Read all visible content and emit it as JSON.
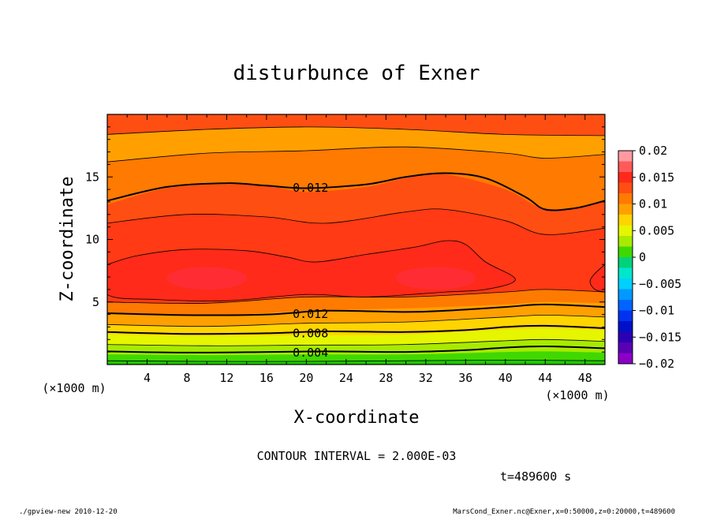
{
  "chart_data": {
    "type": "heatmap",
    "title": "disturbunce of Exner",
    "xlabel": "X-coordinate",
    "ylabel": "Z-coordinate",
    "x_unit": "(×1000 m)",
    "z_unit": "(×1000 m)",
    "xlim": [
      0,
      50
    ],
    "ylim": [
      0,
      20
    ],
    "x_ticks": [
      "4",
      "8",
      "12",
      "16",
      "20",
      "24",
      "28",
      "32",
      "36",
      "40",
      "44",
      "48"
    ],
    "y_ticks": [
      "5",
      "10",
      "15"
    ],
    "contour_interval_text": "CONTOUR INTERVAL = 2.000E-03",
    "time_text": "t=489600 s",
    "colorbar": {
      "labels": [
        "0.02",
        "0.015",
        "0.01",
        "0.005",
        "0",
        "−0.005",
        "−0.01",
        "−0.015",
        "−0.02"
      ],
      "range": [
        -0.02,
        0.02
      ],
      "bands": [
        {
          "lo": 0.018,
          "hi": 0.02,
          "color": "#ff9aa0"
        },
        {
          "lo": 0.016,
          "hi": 0.018,
          "color": "#ff5a5a"
        },
        {
          "lo": 0.014,
          "hi": 0.016,
          "color": "#ff2a1a"
        },
        {
          "lo": 0.012,
          "hi": 0.014,
          "color": "#ff4e12"
        },
        {
          "lo": 0.01,
          "hi": 0.012,
          "color": "#ff7a00"
        },
        {
          "lo": 0.008,
          "hi": 0.01,
          "color": "#ffa000"
        },
        {
          "lo": 0.006,
          "hi": 0.008,
          "color": "#ffd400"
        },
        {
          "lo": 0.004,
          "hi": 0.006,
          "color": "#e6f500"
        },
        {
          "lo": 0.002,
          "hi": 0.004,
          "color": "#a8ea00"
        },
        {
          "lo": 0.0,
          "hi": 0.002,
          "color": "#40d800"
        },
        {
          "lo": -0.002,
          "hi": 0.0,
          "color": "#00d27a"
        },
        {
          "lo": -0.004,
          "hi": -0.002,
          "color": "#00e6cc"
        },
        {
          "lo": -0.006,
          "hi": -0.004,
          "color": "#00d0ff"
        },
        {
          "lo": -0.008,
          "hi": -0.006,
          "color": "#0099ff"
        },
        {
          "lo": -0.01,
          "hi": -0.008,
          "color": "#0064ff"
        },
        {
          "lo": -0.012,
          "hi": -0.01,
          "color": "#0032f0"
        },
        {
          "lo": -0.014,
          "hi": -0.012,
          "color": "#0010c8"
        },
        {
          "lo": -0.016,
          "hi": -0.014,
          "color": "#2a00b4"
        },
        {
          "lo": -0.018,
          "hi": -0.016,
          "color": "#5a00b4"
        },
        {
          "lo": -0.02,
          "hi": -0.018,
          "color": "#8a00c8"
        }
      ]
    },
    "field_bands": [
      {
        "value": 0.001,
        "color": "#40d800",
        "boundary": [
          [
            0,
            0.3
          ],
          [
            10,
            0.25
          ],
          [
            20,
            0.25
          ],
          [
            30,
            0.3
          ],
          [
            40,
            0.35
          ],
          [
            50,
            0.3
          ]
        ]
      },
      {
        "value": 0.003,
        "color": "#a8ea00",
        "boundary": [
          [
            0,
            0.8
          ],
          [
            10,
            0.75
          ],
          [
            20,
            0.8
          ],
          [
            30,
            0.8
          ],
          [
            40,
            1.0
          ],
          [
            44,
            1.05
          ],
          [
            50,
            0.95
          ]
        ]
      },
      {
        "value": 0.005,
        "color": "#e6f500",
        "boundary": [
          [
            0,
            1.6
          ],
          [
            10,
            1.5
          ],
          [
            20,
            1.55
          ],
          [
            30,
            1.6
          ],
          [
            40,
            1.9
          ],
          [
            44,
            2.0
          ],
          [
            50,
            1.85
          ]
        ]
      },
      {
        "value": 0.007,
        "color": "#ffd400",
        "boundary": [
          [
            0,
            2.4
          ],
          [
            10,
            2.3
          ],
          [
            20,
            2.35
          ],
          [
            30,
            2.4
          ],
          [
            40,
            2.8
          ],
          [
            44,
            2.9
          ],
          [
            50,
            2.75
          ]
        ]
      },
      {
        "value": 0.009,
        "color": "#ffa000",
        "boundary": [
          [
            0,
            3.2
          ],
          [
            10,
            3.05
          ],
          [
            20,
            3.3
          ],
          [
            30,
            3.4
          ],
          [
            40,
            3.8
          ],
          [
            44,
            3.95
          ],
          [
            50,
            3.8
          ]
        ]
      },
      {
        "value": 0.011,
        "color": "#ff7a00",
        "boundary": [
          [
            0,
            4.1
          ],
          [
            10,
            3.9
          ],
          [
            20,
            4.3
          ],
          [
            30,
            4.5
          ],
          [
            40,
            4.8
          ],
          [
            44,
            5.0
          ],
          [
            50,
            4.9
          ]
        ]
      },
      {
        "value": 0.013,
        "color": "#ff4e12",
        "boundary": [
          [
            0,
            5.0
          ],
          [
            10,
            4.9
          ],
          [
            20,
            5.4
          ],
          [
            30,
            5.4
          ],
          [
            40,
            5.8
          ],
          [
            44,
            6.0
          ],
          [
            50,
            5.8
          ]
        ]
      }
    ],
    "upper_bands": [
      {
        "value": 0.009,
        "color": "#ffa000",
        "boundary": [
          [
            0,
            18.4
          ],
          [
            10,
            18.8
          ],
          [
            20,
            19.0
          ],
          [
            30,
            18.8
          ],
          [
            40,
            18.4
          ],
          [
            50,
            18.3
          ]
        ]
      },
      {
        "value": 0.011,
        "color": "#ff7a00",
        "boundary": [
          [
            0,
            16.2
          ],
          [
            10,
            16.9
          ],
          [
            20,
            17.1
          ],
          [
            30,
            17.4
          ],
          [
            40,
            16.9
          ],
          [
            44,
            16.5
          ],
          [
            50,
            16.8
          ]
        ]
      },
      {
        "value": 0.013,
        "color": "#ff4e12",
        "boundary": [
          [
            0,
            12.8
          ],
          [
            6,
            14.1
          ],
          [
            12,
            14.4
          ],
          [
            16,
            14.3
          ],
          [
            20,
            13.8
          ],
          [
            26,
            14.2
          ],
          [
            30,
            14.9
          ],
          [
            34,
            15.2
          ],
          [
            40,
            14.0
          ],
          [
            44,
            12.4
          ],
          [
            48,
            12.7
          ],
          [
            50,
            13.1
          ]
        ]
      },
      {
        "value": 0.014,
        "color": "#ff3a14",
        "boundary": [
          [
            0,
            11.3
          ],
          [
            8,
            12.0
          ],
          [
            16,
            11.8
          ],
          [
            22,
            11.3
          ],
          [
            30,
            12.2
          ],
          [
            34,
            12.4
          ],
          [
            40,
            11.5
          ],
          [
            44,
            10.4
          ],
          [
            50,
            10.9
          ]
        ]
      }
    ],
    "core_region": {
      "value": 0.015,
      "color": "#ff2a1a",
      "outline": [
        [
          0,
          8
        ],
        [
          3,
          8.7
        ],
        [
          8,
          9.2
        ],
        [
          14,
          9.1
        ],
        [
          18,
          8.6
        ],
        [
          21,
          8.2
        ],
        [
          26,
          8.8
        ],
        [
          31,
          9.4
        ],
        [
          34,
          9.9
        ],
        [
          36,
          9.6
        ],
        [
          38,
          8.2
        ],
        [
          41,
          6.8
        ],
        [
          38,
          6.0
        ],
        [
          34,
          5.8
        ],
        [
          26,
          5.4
        ],
        [
          20,
          5.6
        ],
        [
          12,
          5.1
        ],
        [
          5,
          5.2
        ],
        [
          0,
          5.6
        ]
      ]
    },
    "edge_region": {
      "value": 0.015,
      "color": "#ff2a1a",
      "outline": [
        [
          50,
          8
        ],
        [
          48.9,
          7.2
        ],
        [
          48.5,
          6.6
        ],
        [
          49,
          6.0
        ],
        [
          50,
          5.8
        ]
      ]
    },
    "hot_spots": [
      {
        "x": 10,
        "z": 6.9,
        "rx": 4,
        "rz": 0.9,
        "value": 0.016,
        "color": "#ff3044"
      },
      {
        "x": 33,
        "z": 6.9,
        "rx": 4,
        "rz": 0.9,
        "value": 0.016,
        "color": "#ff3044"
      }
    ],
    "thick_contours": [
      {
        "value": 0.012,
        "label": "0.012",
        "label_x": 18,
        "points": [
          [
            0,
            13.1
          ],
          [
            6,
            14.2
          ],
          [
            12,
            14.5
          ],
          [
            16,
            14.3
          ],
          [
            20,
            14.1
          ],
          [
            26,
            14.4
          ],
          [
            30,
            15.0
          ],
          [
            34,
            15.3
          ],
          [
            38,
            14.9
          ],
          [
            42,
            13.4
          ],
          [
            44,
            12.4
          ],
          [
            47,
            12.5
          ],
          [
            50,
            13.1
          ]
        ]
      },
      {
        "value": 0.012,
        "label": "0.012",
        "label_x": 18,
        "points": [
          [
            0,
            4.1
          ],
          [
            8,
            3.95
          ],
          [
            16,
            4.0
          ],
          [
            22,
            4.3
          ],
          [
            30,
            4.2
          ],
          [
            34,
            4.3
          ],
          [
            40,
            4.6
          ],
          [
            44,
            4.8
          ],
          [
            50,
            4.6
          ]
        ]
      },
      {
        "value": 0.008,
        "label": "0.008",
        "label_x": 18,
        "points": [
          [
            0,
            2.6
          ],
          [
            8,
            2.45
          ],
          [
            16,
            2.5
          ],
          [
            22,
            2.65
          ],
          [
            30,
            2.6
          ],
          [
            36,
            2.75
          ],
          [
            40,
            3.0
          ],
          [
            44,
            3.1
          ],
          [
            50,
            2.9
          ]
        ]
      },
      {
        "value": 0.004,
        "label": "0.004",
        "label_x": 18,
        "points": [
          [
            0,
            1.05
          ],
          [
            8,
            0.95
          ],
          [
            16,
            1.0
          ],
          [
            22,
            1.05
          ],
          [
            30,
            1.0
          ],
          [
            36,
            1.15
          ],
          [
            40,
            1.35
          ],
          [
            44,
            1.45
          ],
          [
            50,
            1.3
          ]
        ]
      }
    ],
    "thin_contours": [
      {
        "value": 0.014,
        "points": [
          [
            0,
            11.3
          ],
          [
            8,
            12.0
          ],
          [
            16,
            11.8
          ],
          [
            22,
            11.3
          ],
          [
            30,
            12.2
          ],
          [
            34,
            12.4
          ],
          [
            40,
            11.5
          ],
          [
            44,
            10.4
          ],
          [
            50,
            10.9
          ]
        ]
      },
      {
        "value": 0.01,
        "points": [
          [
            0,
            16.2
          ],
          [
            10,
            16.9
          ],
          [
            20,
            17.1
          ],
          [
            30,
            17.4
          ],
          [
            40,
            16.9
          ],
          [
            44,
            16.5
          ],
          [
            50,
            16.8
          ]
        ]
      },
      {
        "value": 0.008,
        "points": [
          [
            0,
            18.4
          ],
          [
            10,
            18.8
          ],
          [
            20,
            19.0
          ],
          [
            30,
            18.8
          ],
          [
            40,
            18.4
          ],
          [
            50,
            18.3
          ]
        ]
      },
      {
        "value": 0.01,
        "points": [
          [
            0,
            3.2
          ],
          [
            10,
            3.05
          ],
          [
            20,
            3.3
          ],
          [
            30,
            3.4
          ],
          [
            40,
            3.8
          ],
          [
            44,
            3.95
          ],
          [
            50,
            3.8
          ]
        ]
      },
      {
        "value": 0.006,
        "points": [
          [
            0,
            1.6
          ],
          [
            10,
            1.5
          ],
          [
            20,
            1.55
          ],
          [
            30,
            1.6
          ],
          [
            40,
            1.9
          ],
          [
            44,
            2.0
          ],
          [
            50,
            1.85
          ]
        ]
      },
      {
        "value": 0.002,
        "points": [
          [
            0,
            0.3
          ],
          [
            10,
            0.25
          ],
          [
            20,
            0.25
          ],
          [
            30,
            0.3
          ],
          [
            40,
            0.35
          ],
          [
            50,
            0.3
          ]
        ]
      },
      {
        "value": 0.014,
        "points": [
          [
            0,
            5.0
          ],
          [
            10,
            4.9
          ],
          [
            20,
            5.4
          ],
          [
            30,
            5.4
          ],
          [
            40,
            5.8
          ],
          [
            44,
            6.0
          ],
          [
            50,
            5.8
          ]
        ]
      }
    ]
  },
  "footer": {
    "left": "./gpview-new  2010-12-20",
    "right": "MarsCond_Exner.nc@Exner,x=0:50000,z=0:20000,t=489600"
  }
}
